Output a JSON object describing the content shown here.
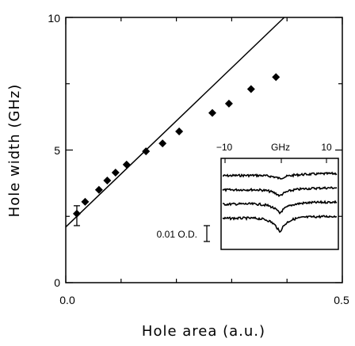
{
  "chart_data": {
    "type": "scatter",
    "xlabel": "Hole area (a.u.)",
    "ylabel": "Hole width (GHz)",
    "xlim": [
      0,
      0.5
    ],
    "ylim": [
      0,
      10
    ],
    "x_ticks": [
      "0.0",
      "0.5"
    ],
    "y_ticks": [
      "0",
      "5",
      "10"
    ],
    "grid": false,
    "series": [
      {
        "marker": "diamond",
        "x": [
          0.02,
          0.035,
          0.06,
          0.075,
          0.09,
          0.11,
          0.145,
          0.175,
          0.205,
          0.265,
          0.295,
          0.335,
          0.38
        ],
        "y": [
          2.6,
          3.05,
          3.5,
          3.85,
          4.15,
          4.45,
          4.95,
          5.25,
          5.7,
          6.4,
          6.75,
          7.3,
          7.75
        ]
      }
    ],
    "error_bar": {
      "x": 0.02,
      "y_low": 2.15,
      "y_high": 2.9
    },
    "fit_line": {
      "x": [
        0,
        0.395
      ],
      "y": [
        2.1,
        10
      ]
    },
    "inset": {
      "x_ticks": [
        "−10",
        "GHz",
        "10"
      ],
      "scale_label": "0.01 O.D.",
      "trace_count": 4
    }
  }
}
